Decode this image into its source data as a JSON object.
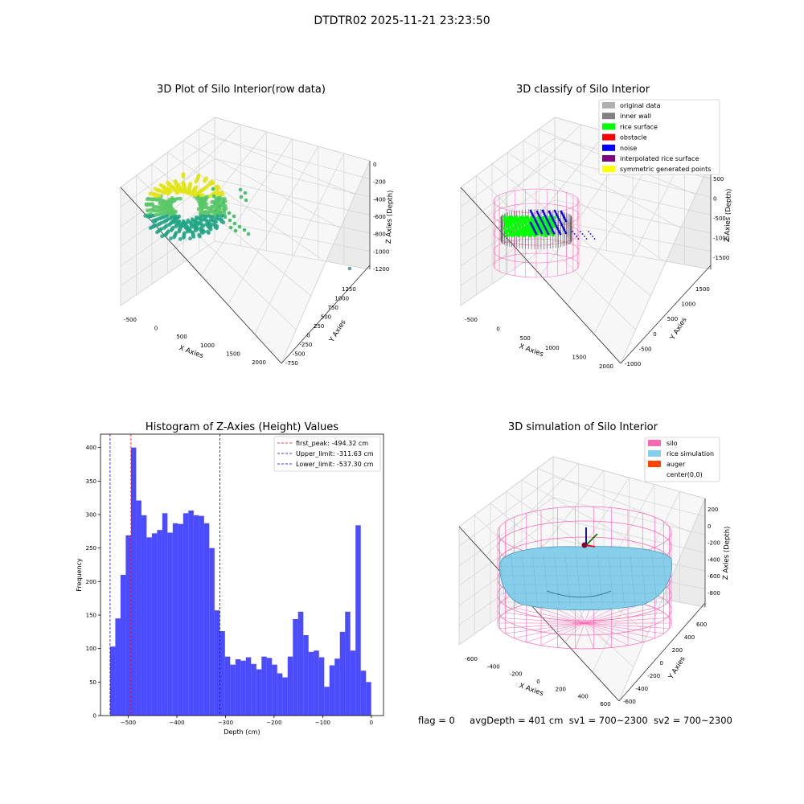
{
  "title": "DTDTR02 2025-11-21 23:23:50",
  "footer": {
    "flag": "flag = 0",
    "avg_depth": "avgDepth = 401 cm",
    "sv1": "sv1 = 700~2300",
    "sv2": "sv2 = 700~2300"
  },
  "panels": {
    "raw": {
      "title": "3D Plot of Silo Interior(row data)",
      "xlabel": "X Axies",
      "ylabel": "Y Axies",
      "zlabel": "Z Axies (Depth)",
      "xticks": [
        "-500",
        "0",
        "500",
        "1000",
        "1500",
        "2000"
      ],
      "yticks": [
        "-750",
        "-500",
        "-250",
        "0",
        "250",
        "500",
        "750",
        "1000",
        "1250"
      ],
      "zticks": [
        "0",
        "-200",
        "-400",
        "-600",
        "-800",
        "-1000",
        "-1200"
      ]
    },
    "classify": {
      "title": "3D classify of Silo Interior",
      "xlabel": "X Axies",
      "ylabel": "Y Axies",
      "zlabel": "Z Axies (Depth)",
      "xticks": [
        "-500",
        "0",
        "500",
        "1000",
        "1500",
        "2000"
      ],
      "yticks": [
        "-1000",
        "-500",
        "0",
        "500",
        "1000",
        "1500"
      ],
      "zticks": [
        "500",
        "0",
        "-500",
        "-1000",
        "-1500"
      ],
      "legend": [
        {
          "label": "original data",
          "color": "#b0b0b0"
        },
        {
          "label": "inner wall",
          "color": "#808080"
        },
        {
          "label": "rice surface",
          "color": "#00ff00"
        },
        {
          "label": "obstacle",
          "color": "#ff0000"
        },
        {
          "label": "noise",
          "color": "#0000ff"
        },
        {
          "label": "interpolated rice surface",
          "color": "#800080"
        },
        {
          "label": "symmetric generated points",
          "color": "#ffff00"
        }
      ]
    },
    "simulation": {
      "title": "3D simulation of Silo Interior",
      "xlabel": "X Axies",
      "ylabel": "Y Axies",
      "zlabel": "Z Axies (Depth)",
      "xticks": [
        "-600",
        "-400",
        "-200",
        "0",
        "200",
        "400",
        "600"
      ],
      "yticks": [
        "-600",
        "-400",
        "-200",
        "0",
        "200",
        "400",
        "600"
      ],
      "zticks": [
        "200",
        "0",
        "-200",
        "-400",
        "-600",
        "-800"
      ],
      "legend": [
        {
          "label": "silo",
          "color": "#ff69b4"
        },
        {
          "label": "rice simulation",
          "color": "#87ceeb"
        },
        {
          "label": "auger",
          "color": "#ff4500"
        },
        {
          "label": "center(0,0)",
          "color": ""
        }
      ]
    }
  },
  "chart_data": {
    "type": "bar",
    "title": "Histogram of Z-Axies (Height) Values",
    "xlabel": "Depth (cm)",
    "ylabel": "Frequency",
    "xlim": [
      -557,
      25
    ],
    "ylim": [
      0,
      420
    ],
    "xticks": [
      -500,
      -400,
      -300,
      -200,
      -100,
      0
    ],
    "yticks": [
      0,
      50,
      100,
      150,
      200,
      250,
      300,
      350,
      400
    ],
    "bin_start": -537.3,
    "bin_width": 10.74,
    "values": [
      103,
      145,
      210,
      269,
      400,
      321,
      299,
      266,
      272,
      277,
      302,
      273,
      287,
      286,
      302,
      306,
      299,
      298,
      287,
      250,
      157,
      126,
      88,
      76,
      84,
      82,
      87,
      77,
      69,
      88,
      86,
      76,
      63,
      57,
      88,
      144,
      155,
      120,
      95,
      97,
      87,
      43,
      75,
      85,
      125,
      155,
      97,
      284,
      67,
      50
    ],
    "bar_color": "#0000ff",
    "lines": [
      {
        "label": "first_peak: -494.32 cm",
        "x": -494.32,
        "color": "#ff0000"
      },
      {
        "label": "Upper_limit: -311.63 cm",
        "x": -311.63,
        "color": "#0000ff"
      },
      {
        "label": "Lower_limit: -537.30 cm",
        "x": -537.3,
        "color": "#0000ff"
      }
    ],
    "legend_position": "top-right"
  }
}
